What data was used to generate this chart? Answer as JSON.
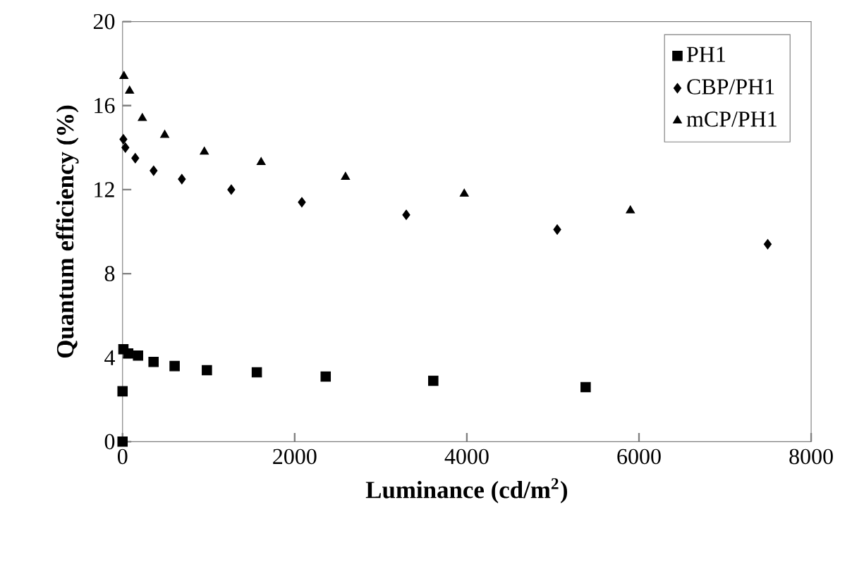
{
  "chart_data": {
    "type": "scatter",
    "xlabel": "Luminance (cd/m$^{2}$)",
    "ylabel": "Quantum efficiency (%)",
    "xlim": [
      0,
      8000
    ],
    "ylim": [
      0,
      20
    ],
    "xticks": [
      0,
      2000,
      4000,
      6000,
      8000
    ],
    "yticks": [
      0,
      4,
      8,
      12,
      16,
      20
    ],
    "grid": false,
    "legend": "top right",
    "series": [
      {
        "name": "PH1",
        "color": "#000000",
        "marker": "square",
        "x": [
          0,
          0,
          10,
          66,
          180,
          360,
          605,
          980,
          1560,
          2360,
          3610,
          5380
        ],
        "values": [
          0,
          2.4,
          4.4,
          4.2,
          4.1,
          3.8,
          3.6,
          3.4,
          3.3,
          3.1,
          2.9,
          2.6
        ]
      },
      {
        "name": "CBP/PH1",
        "color": "#000000",
        "marker": "diamond",
        "x": [
          10,
          33,
          148,
          361,
          689,
          1263,
          2083,
          3296,
          5050,
          7495
        ],
        "values": [
          14.4,
          14.0,
          13.5,
          12.9,
          12.5,
          12.0,
          11.4,
          10.8,
          10.1,
          9.4
        ]
      },
      {
        "name": "mCP/PH1",
        "color": "#000000",
        "marker": "triangle",
        "x": [
          16,
          82,
          230,
          490,
          950,
          1610,
          2590,
          3970,
          5900
        ],
        "values": [
          17.4,
          16.7,
          15.4,
          14.6,
          13.8,
          13.3,
          12.6,
          11.8,
          11.0
        ]
      }
    ]
  }
}
